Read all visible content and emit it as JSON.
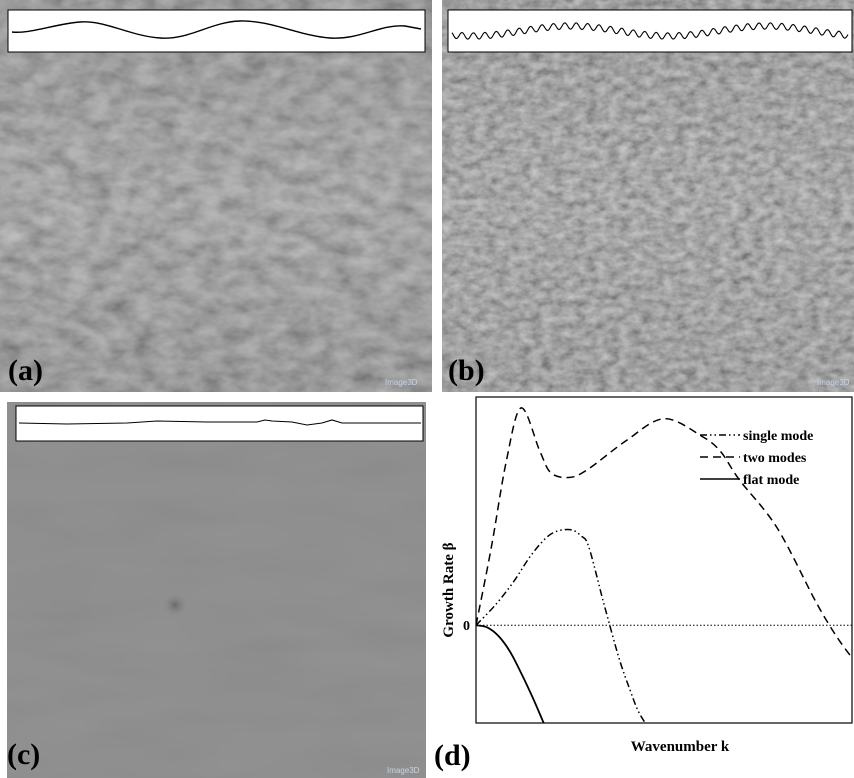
{
  "panels": {
    "a": {
      "label": "(a)",
      "watermark": "Image3D"
    },
    "b": {
      "label": "(b)",
      "watermark": "Image3D"
    },
    "c": {
      "label": "(c)",
      "watermark": "Image3D"
    },
    "d": {
      "label": "(d)"
    }
  },
  "chart_data": {
    "type": "line",
    "title": "",
    "xlabel": "Wavenumber k",
    "ylabel": "Growth Rate β",
    "y_ticks": [
      {
        "value": 0,
        "label": "0"
      }
    ],
    "xlim": [
      0,
      1
    ],
    "ylim": [
      -0.45,
      1.05
    ],
    "grid": false,
    "legend_position": "top-right",
    "reference_line": {
      "y": 0,
      "style": "dotted"
    },
    "series": [
      {
        "name": "single mode",
        "style": "dash-dot-dot",
        "x": [
          0,
          0.05,
          0.1,
          0.15,
          0.2,
          0.25,
          0.28,
          0.3,
          0.34,
          0.38,
          0.41,
          0.43,
          0.45
        ],
        "y": [
          0,
          0.09,
          0.2,
          0.33,
          0.42,
          0.44,
          0.41,
          0.36,
          0.1,
          -0.15,
          -0.3,
          -0.39,
          -0.45
        ]
      },
      {
        "name": "two modes",
        "style": "dashed",
        "x": [
          0,
          0.04,
          0.08,
          0.12,
          0.17,
          0.2,
          0.25,
          0.3,
          0.4,
          0.5,
          0.6,
          0.65,
          0.7,
          0.8,
          0.9,
          0.94,
          0.97,
          1.0
        ],
        "y": [
          0,
          0.35,
          0.75,
          1.0,
          0.8,
          0.7,
          0.68,
          0.72,
          0.85,
          0.95,
          0.87,
          0.8,
          0.67,
          0.45,
          0.12,
          0.0,
          -0.08,
          -0.15
        ]
      },
      {
        "name": "flat mode",
        "style": "solid",
        "x": [
          0,
          0.03,
          0.06,
          0.09,
          0.12,
          0.15,
          0.18
        ],
        "y": [
          0,
          -0.01,
          -0.05,
          -0.12,
          -0.22,
          -0.33,
          -0.45
        ]
      }
    ]
  }
}
